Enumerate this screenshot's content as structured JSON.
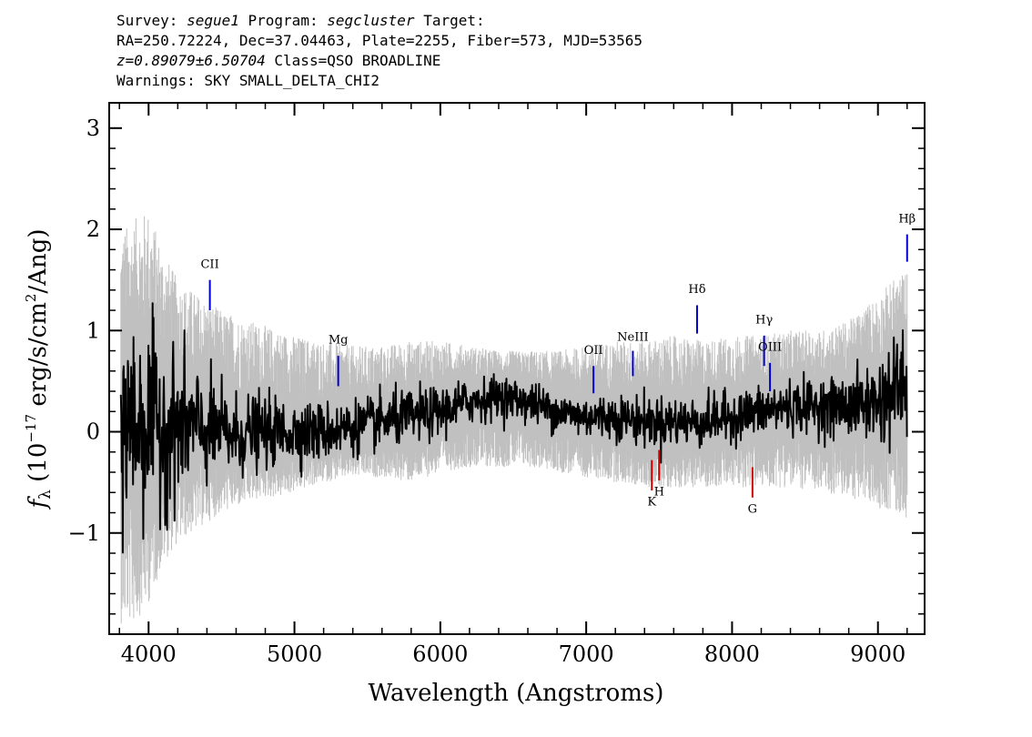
{
  "header": {
    "line1": {
      "survey_label": "Survey:",
      "survey": "segue1",
      "program_label": "Program:",
      "program": "segcluster",
      "target_label": "Target:"
    },
    "line2": "RA=250.72224, Dec=37.04463, Plate=2255, Fiber=573, MJD=53565",
    "line3": {
      "z": "z=0.89079±6.50704",
      "class": "Class=QSO BROADLINE"
    },
    "line4": "Warnings: SKY SMALL_DELTA_CHI2"
  },
  "chart_data": {
    "type": "line",
    "xlabel": "Wavelength (Angstroms)",
    "ylabel": {
      "pre": "f",
      "sub": "λ",
      "mid": " (10",
      "exp": "−17",
      "post": " erg/s/cm",
      "exp2": "2",
      "tail": "/Ang)"
    },
    "xlim": [
      3730,
      9320
    ],
    "ylim": [
      -2.0,
      3.25
    ],
    "x_ticks": [
      4000,
      5000,
      6000,
      7000,
      8000,
      9000
    ],
    "x_tick_labels": [
      "4000",
      "5000",
      "6000",
      "7000",
      "8000",
      "9000"
    ],
    "y_ticks": [
      -1,
      0,
      1,
      2,
      3
    ],
    "y_tick_labels": [
      "−1",
      "0",
      "1",
      "2",
      "3"
    ],
    "grid": false,
    "series": [
      {
        "role": "noise-envelope",
        "color": "#c0c0c0",
        "x": [
          3810,
          3900,
          4000,
          4100,
          4200,
          4300,
          4400,
          4500,
          4600,
          4700,
          4800,
          4900,
          5000,
          5200,
          5400,
          5600,
          5800,
          6000,
          6200,
          6400,
          6600,
          6800,
          7000,
          7200,
          7400,
          7600,
          7800,
          8000,
          8200,
          8400,
          8600,
          8800,
          9000,
          9100,
          9200
        ],
        "upper": [
          2.0,
          2.1,
          2.2,
          1.8,
          1.5,
          1.4,
          1.3,
          1.2,
          1.15,
          1.1,
          1.05,
          1.0,
          0.95,
          0.9,
          0.85,
          0.85,
          0.9,
          0.9,
          0.85,
          0.8,
          0.8,
          0.8,
          0.85,
          0.9,
          0.9,
          0.95,
          0.9,
          0.95,
          0.95,
          1.0,
          1.0,
          1.1,
          1.35,
          1.5,
          1.6
        ],
        "lower": [
          -1.9,
          -1.9,
          -1.7,
          -1.3,
          -1.1,
          -1.0,
          -0.9,
          -0.8,
          -0.75,
          -0.7,
          -0.65,
          -0.65,
          -0.6,
          -0.5,
          -0.45,
          -0.45,
          -0.5,
          -0.4,
          -0.35,
          -0.35,
          -0.35,
          -0.4,
          -0.45,
          -0.5,
          -0.55,
          -0.55,
          -0.55,
          -0.55,
          -0.55,
          -0.55,
          -0.6,
          -0.65,
          -0.75,
          -0.8,
          -0.85
        ]
      },
      {
        "role": "flux",
        "color": "#000000",
        "x": [
          3810,
          3900,
          4000,
          4100,
          4200,
          4300,
          4400,
          4500,
          4600,
          4700,
          4800,
          4900,
          5000,
          5200,
          5400,
          5600,
          5800,
          6000,
          6200,
          6400,
          6600,
          6800,
          7000,
          7200,
          7400,
          7600,
          7800,
          8000,
          8200,
          8400,
          8600,
          8800,
          9000,
          9100,
          9200
        ],
        "y": [
          0.1,
          0.1,
          0.1,
          0.05,
          0.05,
          0.05,
          0.0,
          0.0,
          -0.05,
          0.0,
          0.0,
          0.0,
          0.0,
          0.0,
          0.05,
          0.1,
          0.15,
          0.2,
          0.3,
          0.35,
          0.3,
          0.2,
          0.15,
          0.15,
          0.1,
          0.1,
          0.1,
          0.15,
          0.2,
          0.25,
          0.25,
          0.25,
          0.3,
          0.4,
          0.5
        ],
        "noise": [
          0.55,
          0.5,
          0.45,
          0.4,
          0.35,
          0.3,
          0.25,
          0.22,
          0.2,
          0.18,
          0.17,
          0.16,
          0.15,
          0.14,
          0.13,
          0.13,
          0.13,
          0.12,
          0.11,
          0.1,
          0.1,
          0.1,
          0.1,
          0.11,
          0.12,
          0.12,
          0.12,
          0.12,
          0.12,
          0.13,
          0.13,
          0.15,
          0.2,
          0.25,
          0.3
        ]
      }
    ],
    "line_markers": [
      {
        "label": "CII",
        "x": 4420,
        "y0": 1.2,
        "y1": 1.5,
        "label_y": 1.62,
        "color": "#0000cc"
      },
      {
        "label": "Mg",
        "x": 5300,
        "y0": 0.45,
        "y1": 0.75,
        "label_y": 0.87,
        "color": "#0000cc"
      },
      {
        "label": "OII",
        "x": 7050,
        "y0": 0.38,
        "y1": 0.65,
        "label_y": 0.77,
        "color": "#0000cc"
      },
      {
        "label": "NeIII",
        "x": 7320,
        "y0": 0.55,
        "y1": 0.8,
        "label_y": 0.9,
        "color": "#0000cc"
      },
      {
        "label": "Hδ",
        "x": 7760,
        "y0": 0.97,
        "y1": 1.25,
        "label_y": 1.37,
        "color": "#0000cc"
      },
      {
        "label": "Hγ",
        "x": 8220,
        "y0": 0.65,
        "y1": 0.95,
        "label_y": 1.07,
        "color": "#0000cc"
      },
      {
        "label": "OIII",
        "x": 8260,
        "y0": 0.4,
        "y1": 0.68,
        "label_y": 0.8,
        "color": "#0000cc"
      },
      {
        "label": "Hβ",
        "x": 9200,
        "y0": 1.68,
        "y1": 1.95,
        "label_y": 2.07,
        "color": "#0000cc"
      },
      {
        "label": "K",
        "x": 7450,
        "y0": -0.58,
        "y1": -0.28,
        "label_y": -0.73,
        "color": "#cc0000"
      },
      {
        "label": "H",
        "x": 7500,
        "y0": -0.48,
        "y1": -0.18,
        "label_y": -0.63,
        "color": "#cc0000"
      },
      {
        "label": "G",
        "x": 8140,
        "y0": -0.65,
        "y1": -0.35,
        "label_y": -0.8,
        "color": "#cc0000"
      }
    ]
  }
}
